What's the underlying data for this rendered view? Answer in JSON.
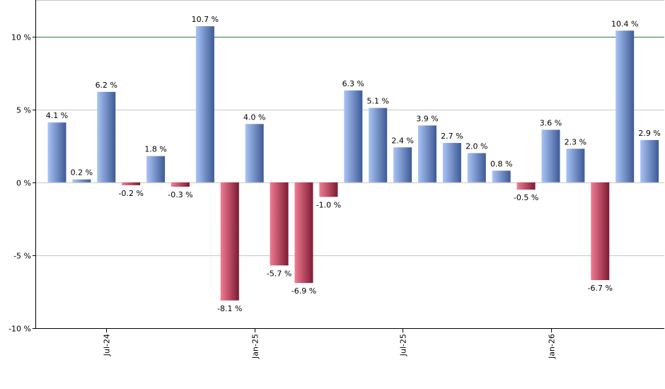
{
  "chart_data": {
    "type": "bar",
    "title": "",
    "xlabel": "",
    "ylabel": "",
    "ylim": [
      -10,
      12.5
    ],
    "yticks": [
      10,
      5,
      0,
      -5,
      -10
    ],
    "ytick_labels": [
      "10 %",
      "5 %",
      "0 %",
      "-5 %",
      "-10 %"
    ],
    "xtick_labels": [
      {
        "label": "Jul-24",
        "index": 2
      },
      {
        "label": "Jan-25",
        "index": 8
      },
      {
        "label": "Jul-25",
        "index": 14
      },
      {
        "label": "Jan-26",
        "index": 20
      }
    ],
    "reference_line": 10,
    "grid": true,
    "values": [
      4.1,
      0.2,
      6.2,
      -0.2,
      1.8,
      -0.3,
      10.7,
      -8.1,
      4.0,
      -5.7,
      -6.9,
      -1.0,
      6.3,
      5.1,
      2.4,
      3.9,
      2.7,
      2.0,
      0.8,
      -0.5,
      3.6,
      2.3,
      -6.7,
      10.4,
      2.9
    ],
    "value_labels": [
      "4.1 %",
      "0.2 %",
      "6.2 %",
      "-0.2 %",
      "1.8 %",
      "-0.3 %",
      "10.7 %",
      "-8.1 %",
      "4.0 %",
      "-5.7 %",
      "-6.9 %",
      "-1.0 %",
      "6.3 %",
      "5.1 %",
      "2.4 %",
      "3.9 %",
      "2.7 %",
      "2.0 %",
      "0.8 %",
      "-0.5 %",
      "3.6 %",
      "2.3 %",
      "-6.7 %",
      "10.4 %",
      "2.9 %"
    ],
    "colors": {
      "positive_light": "#a9c4f5",
      "positive_dark": "#3e5a96",
      "negative_light": "#f07d93",
      "negative_dark": "#7e1a33",
      "reference_line": "#2e7d32",
      "grid": "#c8c8c8",
      "axis": "#000000"
    }
  }
}
